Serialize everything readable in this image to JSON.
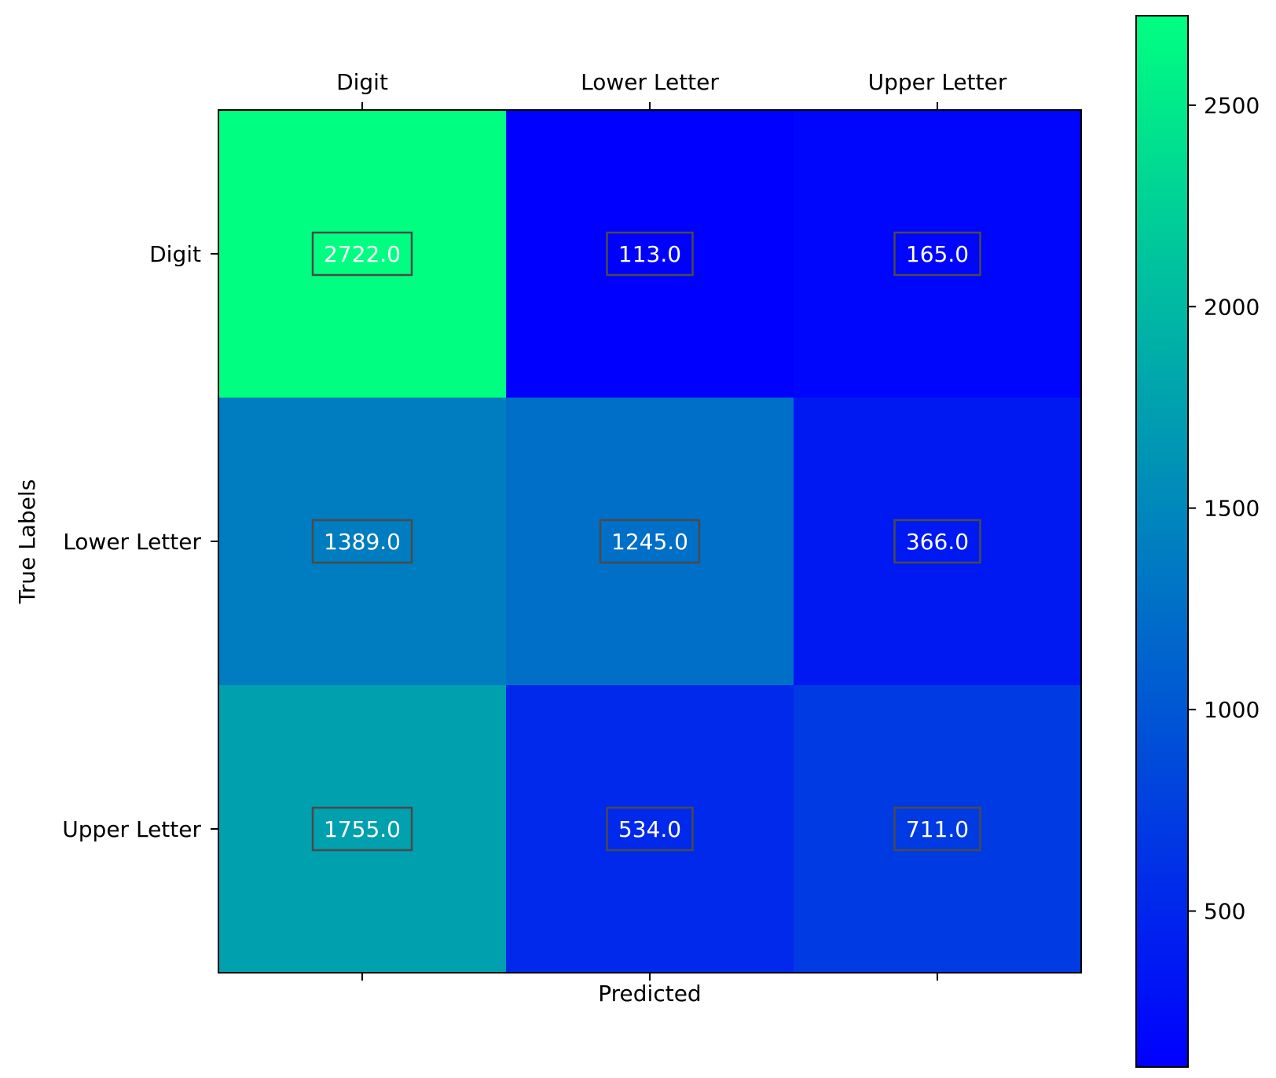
{
  "chart_data": {
    "type": "heatmap",
    "title": "",
    "xlabel": "Predicted",
    "ylabel": "True Labels",
    "x_categories": [
      "Digit",
      "Lower Letter",
      "Upper Letter"
    ],
    "y_categories": [
      "Digit",
      "Lower Letter",
      "Upper Letter"
    ],
    "values": [
      [
        2722.0,
        113.0,
        165.0
      ],
      [
        1389.0,
        1245.0,
        366.0
      ],
      [
        1755.0,
        534.0,
        711.0
      ]
    ],
    "value_labels": [
      [
        "2722.0",
        "113.0",
        "165.0"
      ],
      [
        "1389.0",
        "1245.0",
        "366.0"
      ],
      [
        "1755.0",
        "534.0",
        "711.0"
      ]
    ],
    "colormap": "winter",
    "colormap_low": "#0000ff",
    "colormap_high": "#00ff80",
    "colorbar": {
      "range": [
        113.0,
        2722.0
      ],
      "ticks": [
        500,
        1000,
        1500,
        2000,
        2500
      ],
      "tick_labels": [
        "500",
        "1000",
        "1500",
        "2000",
        "2500"
      ],
      "placement": "right"
    },
    "x_tick_position": "top",
    "grid": false
  }
}
